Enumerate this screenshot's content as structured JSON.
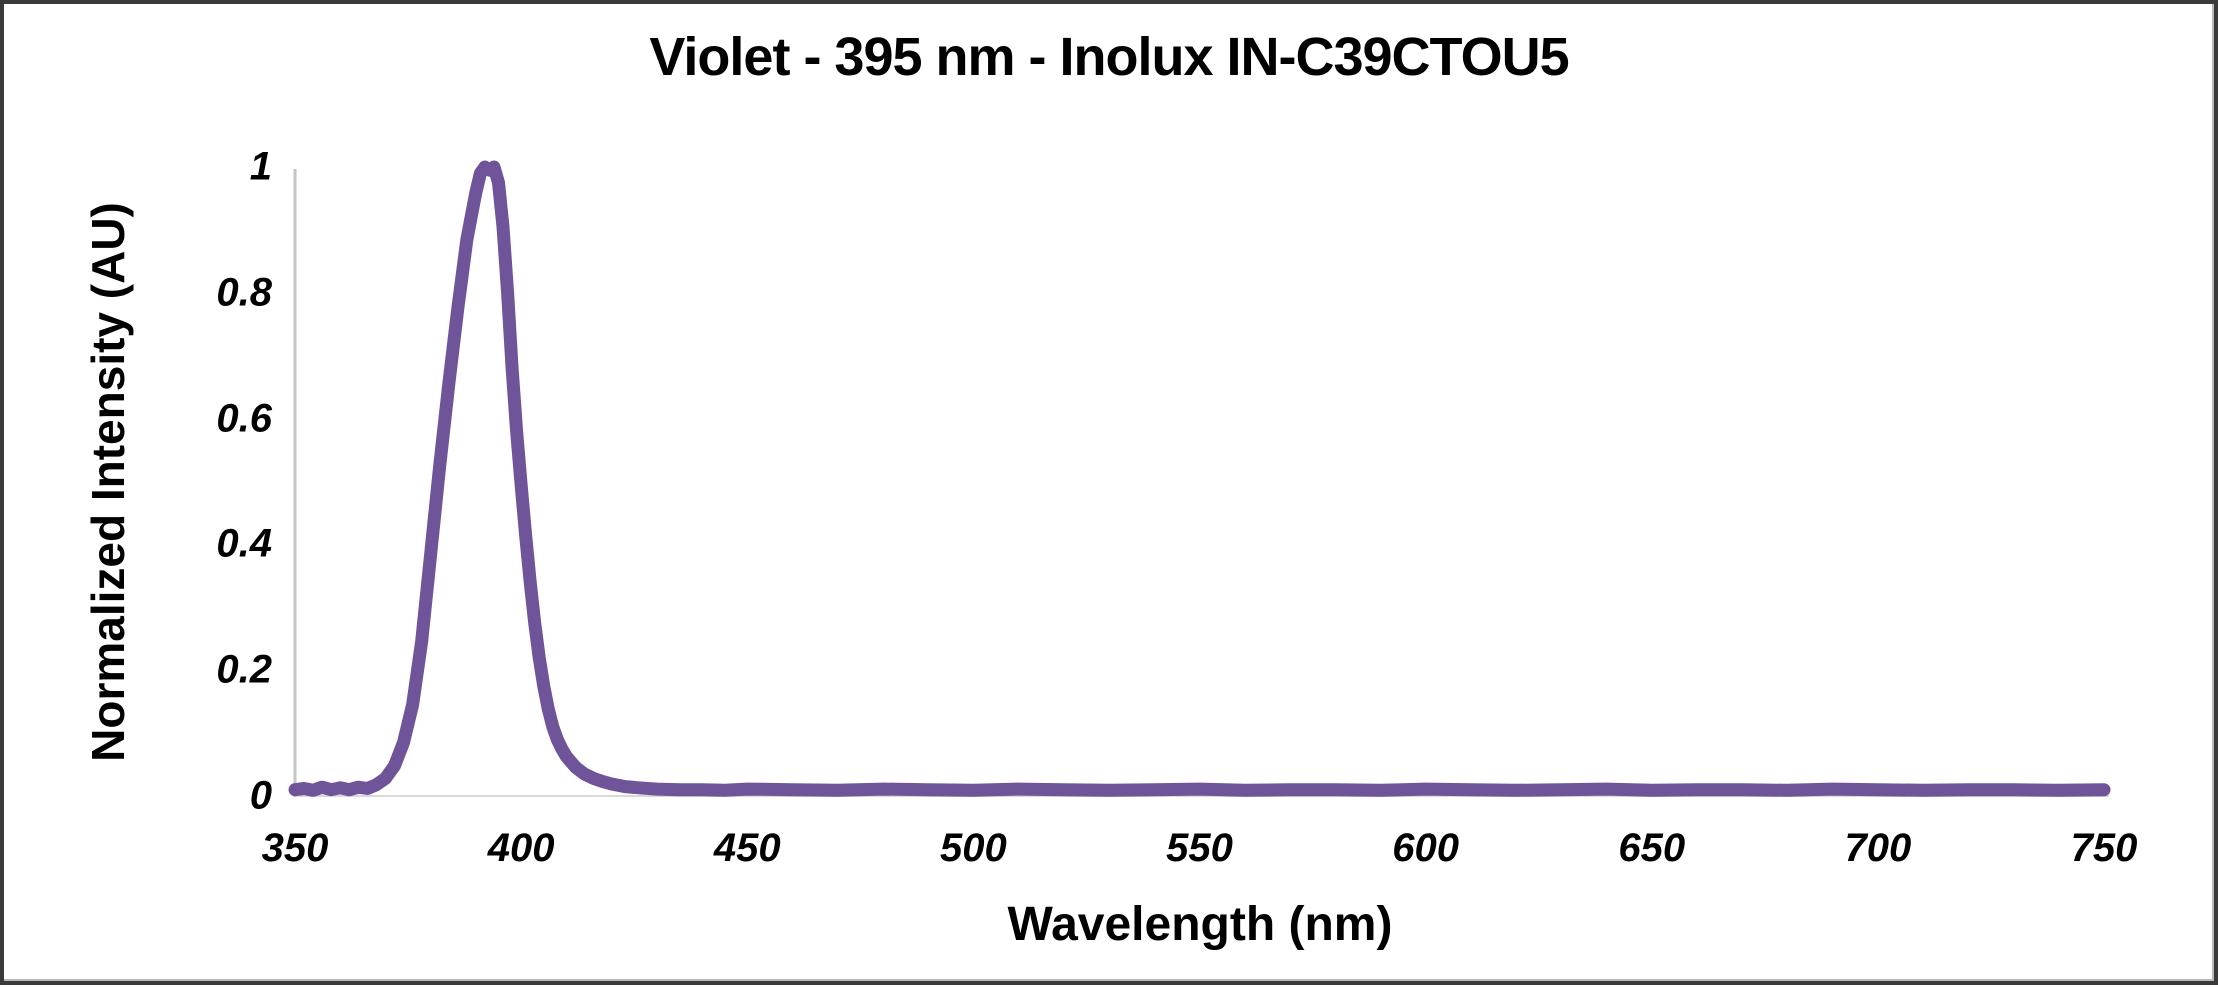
{
  "chart_data": {
    "type": "line",
    "title": "Violet - 395 nm - Inolux IN-C39CTOU5",
    "xlabel": "Wavelength (nm)",
    "ylabel": "Normalized Intensity (AU)",
    "xlim": [
      350,
      750
    ],
    "ylim": [
      0,
      1
    ],
    "grid": false,
    "legend": "none",
    "x_ticks": [
      "350",
      "400",
      "450",
      "500",
      "550",
      "600",
      "650",
      "700",
      "750"
    ],
    "x_tick_values": [
      350,
      400,
      450,
      500,
      550,
      600,
      650,
      700,
      750
    ],
    "y_ticks": [
      "0",
      "0.2",
      "0.4",
      "0.6",
      "0.8",
      "1"
    ],
    "y_tick_values": [
      0,
      0.2,
      0.4,
      0.6,
      0.8,
      1
    ],
    "line_color": "#6F5499",
    "axis_color": "#C6C6C6",
    "baseline_color": "#D9D9D9",
    "peak_wavelength_nm": 395,
    "points": [
      [
        350,
        0.01
      ],
      [
        352,
        0.012
      ],
      [
        354,
        0.009
      ],
      [
        356,
        0.014
      ],
      [
        358,
        0.01
      ],
      [
        360,
        0.013
      ],
      [
        362,
        0.01
      ],
      [
        364,
        0.014
      ],
      [
        366,
        0.012
      ],
      [
        368,
        0.018
      ],
      [
        370,
        0.028
      ],
      [
        372,
        0.048
      ],
      [
        374,
        0.085
      ],
      [
        376,
        0.145
      ],
      [
        378,
        0.245
      ],
      [
        380,
        0.385
      ],
      [
        382,
        0.525
      ],
      [
        384,
        0.655
      ],
      [
        386,
        0.775
      ],
      [
        388,
        0.885
      ],
      [
        390,
        0.96
      ],
      [
        391,
        0.99
      ],
      [
        392,
        1.0
      ],
      [
        393,
        0.995
      ],
      [
        394,
        1.0
      ],
      [
        395,
        0.975
      ],
      [
        396,
        0.905
      ],
      [
        397,
        0.8
      ],
      [
        398,
        0.68
      ],
      [
        399,
        0.58
      ],
      [
        400,
        0.495
      ],
      [
        401,
        0.415
      ],
      [
        402,
        0.34
      ],
      [
        403,
        0.275
      ],
      [
        404,
        0.22
      ],
      [
        405,
        0.175
      ],
      [
        406,
        0.138
      ],
      [
        407,
        0.11
      ],
      [
        408,
        0.09
      ],
      [
        409,
        0.075
      ],
      [
        410,
        0.063
      ],
      [
        412,
        0.046
      ],
      [
        414,
        0.035
      ],
      [
        416,
        0.028
      ],
      [
        418,
        0.023
      ],
      [
        420,
        0.019
      ],
      [
        423,
        0.015
      ],
      [
        426,
        0.013
      ],
      [
        430,
        0.011
      ],
      [
        435,
        0.01
      ],
      [
        440,
        0.01
      ],
      [
        445,
        0.009
      ],
      [
        450,
        0.011
      ],
      [
        460,
        0.01
      ],
      [
        470,
        0.009
      ],
      [
        480,
        0.011
      ],
      [
        490,
        0.01
      ],
      [
        500,
        0.009
      ],
      [
        510,
        0.011
      ],
      [
        520,
        0.01
      ],
      [
        530,
        0.009
      ],
      [
        540,
        0.01
      ],
      [
        550,
        0.011
      ],
      [
        560,
        0.009
      ],
      [
        570,
        0.01
      ],
      [
        580,
        0.01
      ],
      [
        590,
        0.009
      ],
      [
        600,
        0.011
      ],
      [
        610,
        0.01
      ],
      [
        620,
        0.009
      ],
      [
        630,
        0.01
      ],
      [
        640,
        0.011
      ],
      [
        650,
        0.009
      ],
      [
        660,
        0.01
      ],
      [
        670,
        0.01
      ],
      [
        680,
        0.009
      ],
      [
        690,
        0.011
      ],
      [
        700,
        0.01
      ],
      [
        710,
        0.009
      ],
      [
        720,
        0.01
      ],
      [
        730,
        0.01
      ],
      [
        740,
        0.009
      ],
      [
        750,
        0.01
      ]
    ]
  }
}
